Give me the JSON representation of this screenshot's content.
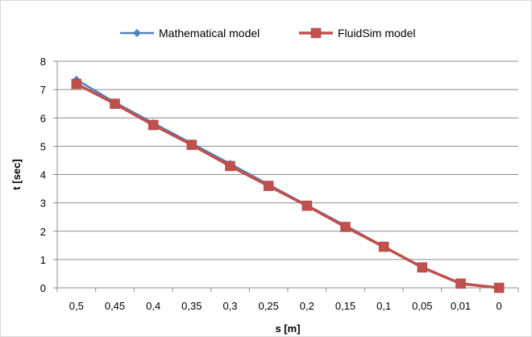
{
  "chart_data": {
    "type": "line",
    "title": "",
    "xlabel": "s [m]",
    "ylabel": "t [sec]",
    "categories": [
      "0,5",
      "0,45",
      "0,4",
      "0,35",
      "0,3",
      "0,25",
      "0,2",
      "0,15",
      "0,1",
      "0,05",
      "0,01",
      "0"
    ],
    "ylim": [
      0,
      8
    ],
    "yticks": [
      "0",
      "1",
      "2",
      "3",
      "4",
      "5",
      "6",
      "7",
      "8"
    ],
    "grid": true,
    "legend_position": "top",
    "series": [
      {
        "name": "Mathematical model",
        "color": "#4f81bd",
        "marker": "diamond",
        "values": [
          7.35,
          6.55,
          5.82,
          5.1,
          4.38,
          3.65,
          2.92,
          2.2,
          1.46,
          0.74,
          0.15,
          0.0
        ]
      },
      {
        "name": "FluidSim model",
        "color": "#c0504d",
        "marker": "square",
        "values": [
          7.2,
          6.5,
          5.75,
          5.05,
          4.3,
          3.6,
          2.9,
          2.15,
          1.45,
          0.72,
          0.15,
          0.0
        ]
      }
    ]
  }
}
